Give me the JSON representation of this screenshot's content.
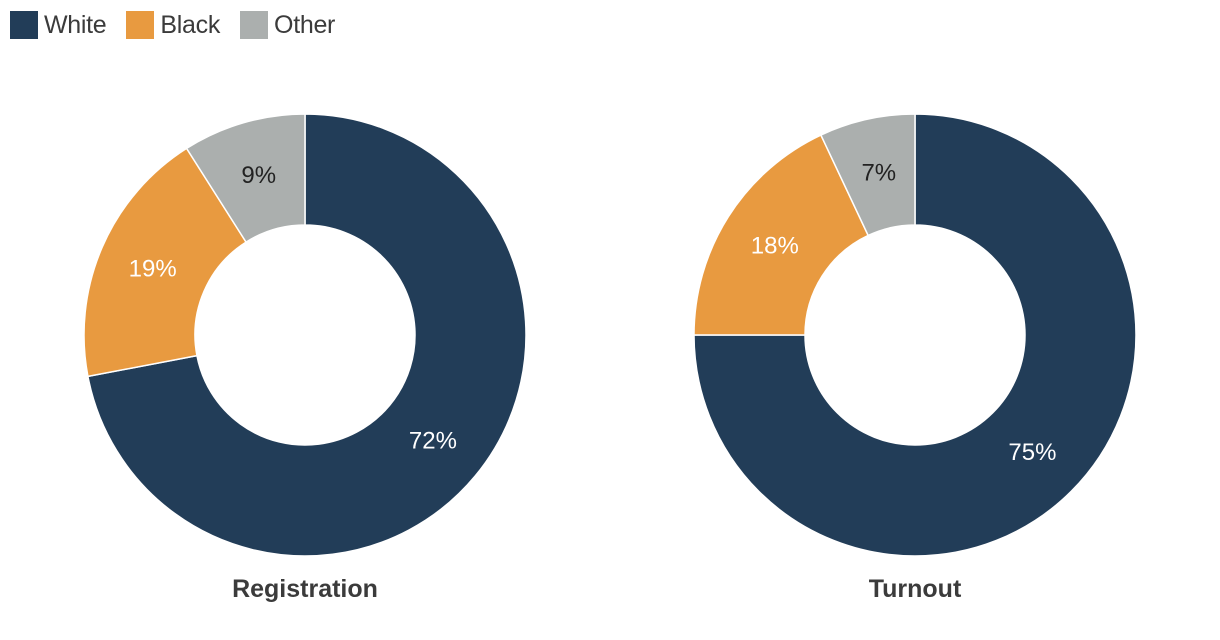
{
  "legend": {
    "items": [
      {
        "label": "White",
        "color": "#223d58"
      },
      {
        "label": "Black",
        "color": "#e89a40"
      },
      {
        "label": "Other",
        "color": "#abafae"
      }
    ]
  },
  "chart_data": [
    {
      "type": "pie",
      "title": "Registration",
      "categories": [
        "White",
        "Black",
        "Other"
      ],
      "values": [
        72,
        19,
        9
      ],
      "labels": [
        "72%",
        "19%",
        "9%"
      ],
      "colors": [
        "#223d58",
        "#e89a40",
        "#abafae"
      ],
      "label_colors": [
        "#ffffff",
        "#ffffff",
        "#222222"
      ],
      "legend_position": "top-left"
    },
    {
      "type": "pie",
      "title": "Turnout",
      "categories": [
        "White",
        "Black",
        "Other"
      ],
      "values": [
        75,
        18,
        7
      ],
      "labels": [
        "75%",
        "18%",
        "7%"
      ],
      "colors": [
        "#223d58",
        "#e89a40",
        "#abafae"
      ],
      "label_colors": [
        "#ffffff",
        "#ffffff",
        "#222222"
      ],
      "legend_position": "top-left"
    }
  ]
}
